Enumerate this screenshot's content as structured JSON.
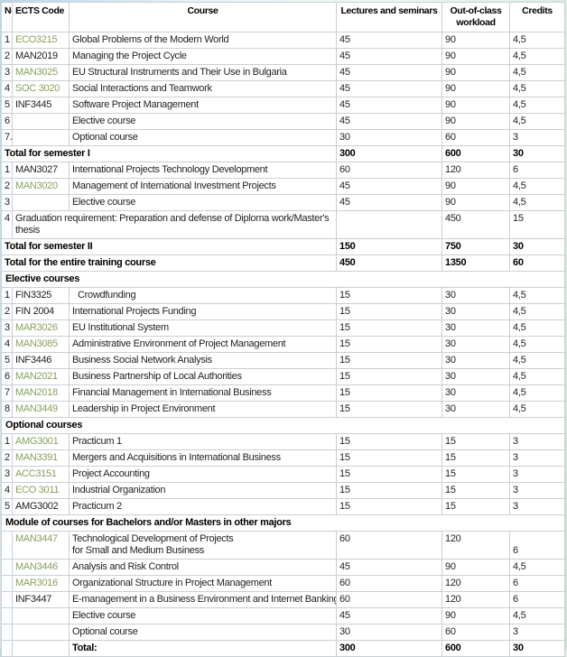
{
  "colors": {
    "code_link_green": "#87a05e",
    "table_border": "#c9cfd4",
    "page_band_blue": "#b9d5ea",
    "page_band_green": "#c6e1cb"
  },
  "table": {
    "columns": [
      {
        "key": "no",
        "label": "No"
      },
      {
        "key": "code",
        "label": "ECTS Code"
      },
      {
        "key": "course",
        "label": "Course"
      },
      {
        "key": "lectures",
        "label": "Lectures and seminars"
      },
      {
        "key": "workload",
        "label": "Out-of-class workload"
      },
      {
        "key": "credits",
        "label": "Credits"
      }
    ],
    "rows": [
      {
        "type": "course",
        "no": "1",
        "code": "ECO3215",
        "link": true,
        "course": "Global Problems of the Modern World",
        "lectures": "45",
        "workload": "90",
        "credits": "4,5"
      },
      {
        "type": "course",
        "no": "2",
        "code": "MAN2019",
        "link": false,
        "course": "Managing the Project Cycle",
        "lectures": "45",
        "workload": "90",
        "credits": "4,5"
      },
      {
        "type": "course",
        "no": "3",
        "code": "MAN3025",
        "link": true,
        "course": "EU Structural Instruments and Their Use in Bulgaria",
        "lectures": "45",
        "workload": "90",
        "credits": "4,5"
      },
      {
        "type": "course",
        "no": "4",
        "code": "SOC 3020",
        "link": true,
        "course": "Social Interactions and Teamwork",
        "lectures": "45",
        "workload": "90",
        "credits": "4,5"
      },
      {
        "type": "course",
        "no": "5",
        "code": "INF3445",
        "link": false,
        "course": "Software Project Management",
        "lectures": "45",
        "workload": "90",
        "credits": "4,5"
      },
      {
        "type": "course",
        "no": "6",
        "code": "",
        "link": false,
        "course": "Elective course",
        "lectures": "45",
        "workload": "90",
        "credits": "4,5"
      },
      {
        "type": "course",
        "no": "7.",
        "code": "",
        "link": false,
        "course": "Optional course",
        "lectures": "30",
        "workload": "60",
        "credits": "3"
      },
      {
        "type": "total",
        "label": "Total for semester I",
        "lectures": "300",
        "workload": "600",
        "credits": "30"
      },
      {
        "type": "course",
        "no": "1",
        "code": "MAN3027",
        "link": false,
        "course": "International Projects Technology Development",
        "lectures": "60",
        "workload": "120",
        "credits": "6"
      },
      {
        "type": "course",
        "no": "2",
        "code": "MAN3020",
        "link": true,
        "course": "Management of International Investment Projects",
        "lectures": "45",
        "workload": "90",
        "credits": "4,5"
      },
      {
        "type": "course",
        "no": "3",
        "code": "",
        "link": false,
        "course": "Elective course",
        "lectures": "45",
        "workload": "90",
        "credits": "4,5"
      },
      {
        "type": "grad",
        "no": "4",
        "label": "Graduation requirement:  Preparation and defense of Diploma work/Master's thesis",
        "lectures": "",
        "workload": "450",
        "credits": "15"
      },
      {
        "type": "total",
        "label": "Total for semester II",
        "lectures": "150",
        "workload": "750",
        "credits": "30"
      },
      {
        "type": "total",
        "label": "Total for the entire training course",
        "lectures": "450",
        "workload": "1350",
        "credits": "60"
      },
      {
        "type": "section",
        "label": "Elective courses"
      },
      {
        "type": "course",
        "no": "1",
        "code": "FIN3325",
        "link": false,
        "course": "Crowdfunding",
        "indent": true,
        "lectures": "15",
        "workload": "30",
        "credits": "4,5"
      },
      {
        "type": "course",
        "no": "2",
        "code": "FIN 2004",
        "link": false,
        "course": "International Projects Funding",
        "lectures": "15",
        "workload": "30",
        "credits": "4,5"
      },
      {
        "type": "course",
        "no": "3",
        "code": "MAR3026",
        "link": true,
        "course": "EU Institutional System",
        "lectures": "15",
        "workload": "30",
        "credits": "4,5"
      },
      {
        "type": "course",
        "no": "4",
        "code": "MAN3085",
        "link": true,
        "course": "Administrative Environment of Project Management",
        "lectures": "15",
        "workload": "30",
        "credits": "4,5"
      },
      {
        "type": "course",
        "no": "5",
        "code": "INF3446",
        "link": false,
        "course": "Business Social Network Analysis",
        "lectures": "15",
        "workload": "30",
        "credits": "4,5"
      },
      {
        "type": "course",
        "no": "6",
        "code": "MAN2021",
        "link": true,
        "course": "Business Partnership of Local Authorities",
        "lectures": "15",
        "workload": "30",
        "credits": "4,5"
      },
      {
        "type": "course",
        "no": "7",
        "code": "MAN2018",
        "link": true,
        "course": "Financial Management in International Business",
        "lectures": "15",
        "workload": "30",
        "credits": "4,5"
      },
      {
        "type": "course",
        "no": "8",
        "code": "MAN3449",
        "link": true,
        "course": "Leadership in Project Environment",
        "lectures": "15",
        "workload": "30",
        "credits": "4,5"
      },
      {
        "type": "section",
        "label": "Optional courses"
      },
      {
        "type": "course",
        "no": "1",
        "code": "AMG3001",
        "link": true,
        "course": "Practicum 1",
        "lectures": "15",
        "workload": "15",
        "credits": "3"
      },
      {
        "type": "course",
        "no": "2",
        "code": "MAN3391",
        "link": true,
        "course": "Mergers and Acquisitions in International Business",
        "lectures": "15",
        "workload": "15",
        "credits": "3"
      },
      {
        "type": "course",
        "no": "3",
        "code": "ACC3151",
        "link": true,
        "course": "Project Accounting",
        "lectures": "15",
        "workload": "15",
        "credits": "3"
      },
      {
        "type": "course",
        "no": "4",
        "code": "ECO 3011",
        "link": true,
        "course": "Industrial Organization",
        "lectures": "15",
        "workload": "15",
        "credits": "3"
      },
      {
        "type": "course",
        "no": "5",
        "code": "AMG3002",
        "link": false,
        "course": "Practicum 2",
        "lectures": "15",
        "workload": "15",
        "credits": "3"
      },
      {
        "type": "section",
        "label": "Module of courses for Bachelors and/or Masters in other majors"
      },
      {
        "type": "course",
        "no": "",
        "code": "MAN3447",
        "link": true,
        "course_lines": [
          "Technological Development of Projects",
          "for Small and Medium Business"
        ],
        "lectures": "60",
        "workload": "120",
        "credits": "6",
        "credits_bottom": true
      },
      {
        "type": "course",
        "no": "",
        "code": "MAN3446",
        "link": true,
        "course": "Analysis and Risk Control",
        "lectures": "45",
        "workload": "90",
        "credits": "4,5"
      },
      {
        "type": "course",
        "no": "",
        "code": "MAR3016",
        "link": true,
        "course": "Organizational Structure in Project Management",
        "lectures": "60",
        "workload": "120",
        "credits": "6"
      },
      {
        "type": "course",
        "no": "",
        "code": "INF3447",
        "link": false,
        "course": "E-management in a Business Environment and Internet Banking",
        "lectures": "60",
        "workload": "120",
        "credits": "6"
      },
      {
        "type": "course",
        "no": "",
        "code": "",
        "link": false,
        "course": "Elective course",
        "lectures": "45",
        "workload": "90",
        "credits": "4,5"
      },
      {
        "type": "course",
        "no": "",
        "code": "",
        "link": false,
        "course": "Optional course",
        "lectures": "30",
        "workload": "60",
        "credits": "3"
      },
      {
        "type": "bottom_total",
        "label": "Total:",
        "lectures": "300",
        "workload": "600",
        "credits": "30"
      }
    ]
  }
}
